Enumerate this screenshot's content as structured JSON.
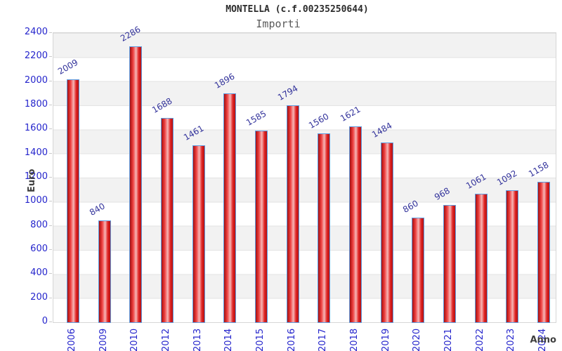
{
  "chart_data": {
    "type": "bar",
    "title": "MONTELLA (c.f.00235250644)",
    "subtitle": "Importi",
    "xlabel": "Anno",
    "ylabel": "Euro",
    "categories": [
      "2006",
      "2009",
      "2010",
      "2012",
      "2013",
      "2014",
      "2015",
      "2016",
      "2017",
      "2018",
      "2019",
      "2020",
      "2021",
      "2022",
      "2023",
      "2024"
    ],
    "values": [
      2009,
      840,
      2286,
      1688,
      1461,
      1896,
      1585,
      1794,
      1560,
      1621,
      1484,
      860,
      968,
      1061,
      1092,
      1158
    ],
    "ylim": [
      0,
      2400
    ],
    "ytick_step": 200,
    "grid": "horizontal-bands",
    "legend": "none",
    "colors": {
      "bar_fill": "#e02222",
      "bar_highlight": "#f6b6b6",
      "bar_shadow": "#a50f0f",
      "bar_border": "#5e9ce0",
      "axis_tick_label": "#2525cc",
      "value_label": "#32329b",
      "band_gray": "#f2f2f2",
      "band_white": "#ffffff",
      "gridline": "#e3e3e3",
      "plot_border": "#d6d6d6",
      "title_color": "#2b2b2b",
      "subtitle_color": "#5a5a5a",
      "axis_title_color": "#3f3f3f"
    }
  }
}
